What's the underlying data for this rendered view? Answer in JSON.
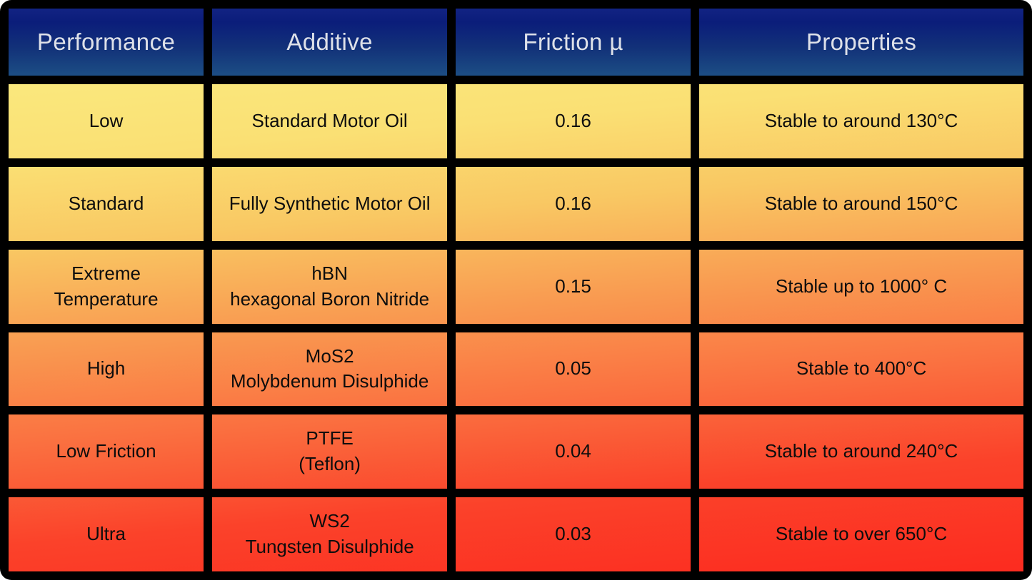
{
  "chart_data": {
    "type": "table",
    "description": "Lubricant additive performance comparison table with yellow-to-red heat gradient from top (low performance) to bottom (ultra performance)",
    "columns": [
      "Performance",
      "Additive",
      "Friction µ",
      "Properties"
    ],
    "rows": [
      [
        "Low",
        "Standard Motor Oil",
        "0.16",
        "Stable to around 130°C"
      ],
      [
        "Standard",
        "Fully Synthetic Motor Oil",
        "0.16",
        "Stable to around 150°C"
      ],
      [
        "Extreme\nTemperature",
        "hBN\nhexagonal Boron Nitride",
        "0.15",
        "Stable up to 1000° C"
      ],
      [
        "High",
        "MoS2\nMolybdenum Disulphide",
        "0.05",
        "Stable to 400°C"
      ],
      [
        "Low Friction",
        "PTFE\n(Teflon)",
        "0.04",
        "Stable to around 240°C"
      ],
      [
        "Ultra",
        "WS2\nTungsten Disulphide",
        "0.03",
        "Stable to over 650°C"
      ]
    ],
    "friction_series": {
      "name": "Friction µ",
      "categories": [
        "Low",
        "Standard",
        "Extreme Temperature",
        "High",
        "Low Friction",
        "Ultra"
      ],
      "values": [
        0.16,
        0.16,
        0.15,
        0.05,
        0.04,
        0.03
      ]
    },
    "layout_hints": {
      "header_row": true,
      "grid_lines": "thick black",
      "body_gradient": "vertical heat scale yellow top to red bottom, slightly warmer toward the right"
    }
  },
  "style": {
    "header_bg_top": "#122383",
    "header_bg_bottom": "#1c4e84",
    "header_text": "#dee1e9",
    "cell_text": "#0d0d0d",
    "heat_top": "#fbeb82",
    "heat_bottom": "#fc2a1f",
    "grid_line": "#000000"
  }
}
